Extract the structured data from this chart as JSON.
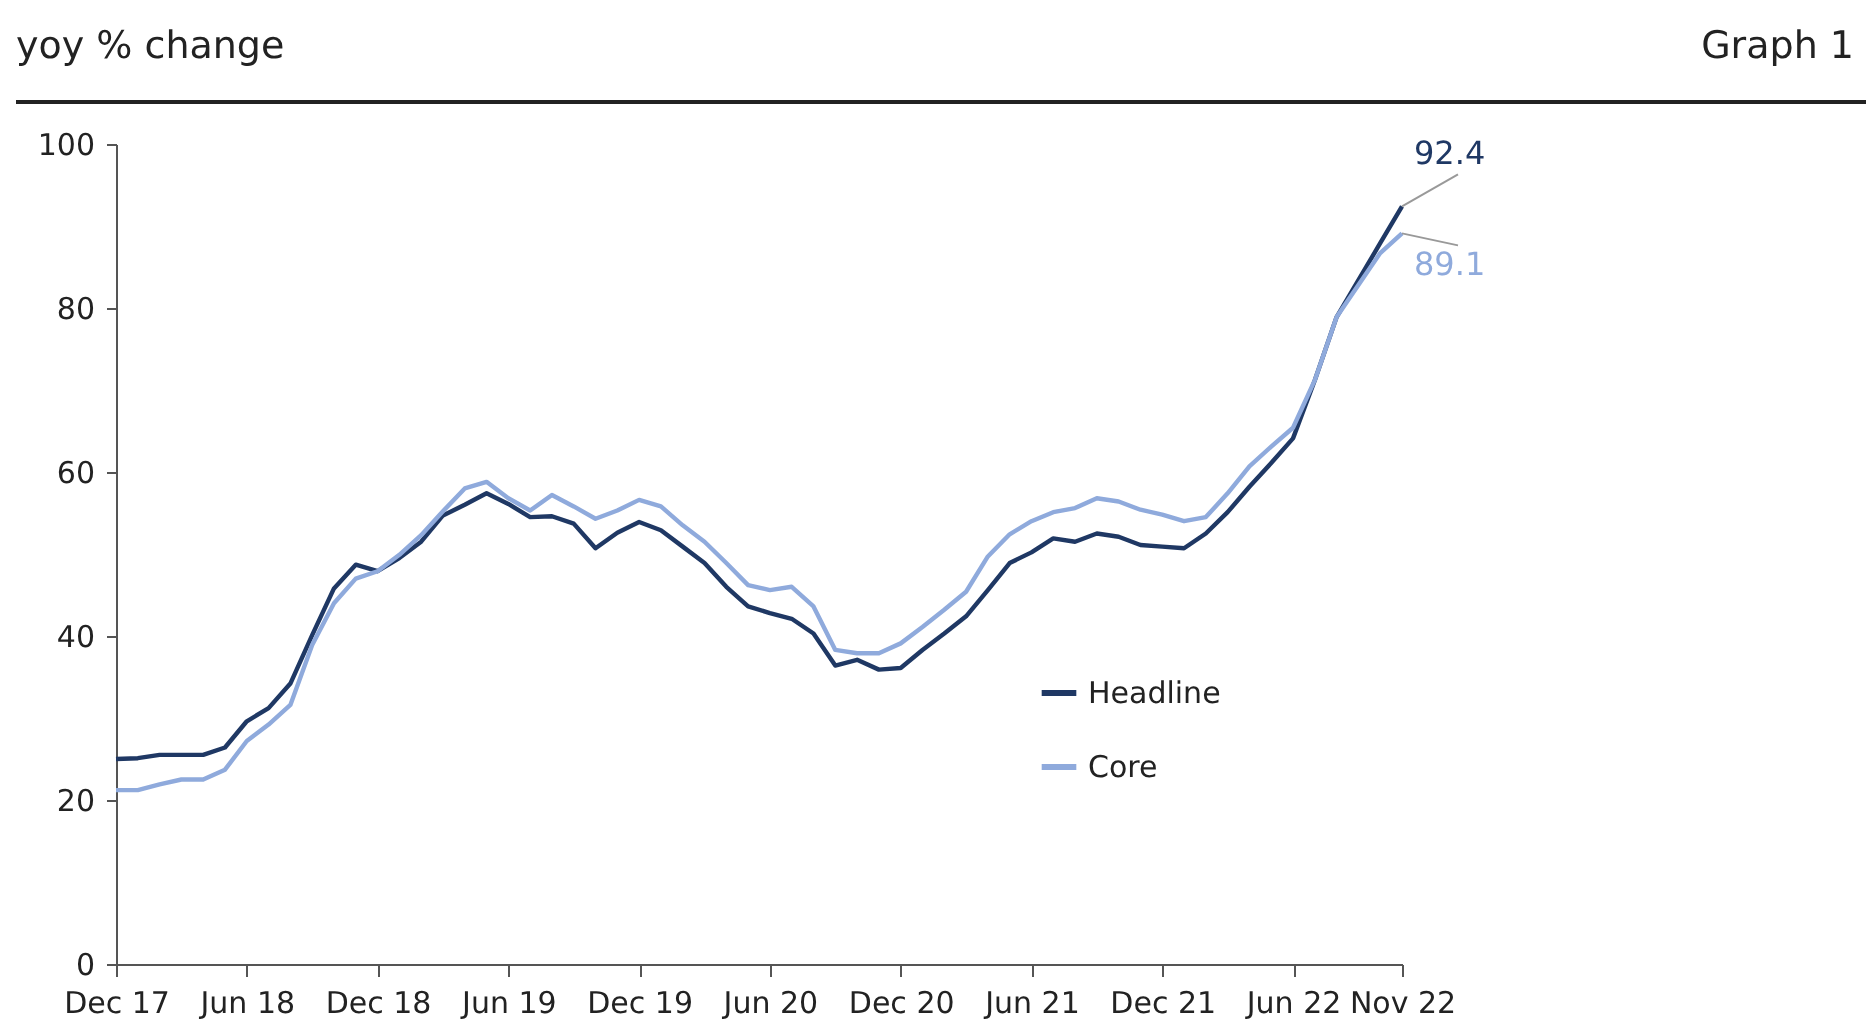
{
  "chart_data": {
    "type": "line",
    "title": "yoy % change",
    "annotations": [
      "Graph 1"
    ],
    "categories": [
      "Dec 17",
      null,
      null,
      null,
      null,
      null,
      "Jun 18",
      null,
      null,
      null,
      null,
      null,
      "Dec 18",
      null,
      null,
      null,
      null,
      null,
      "Jun 19",
      null,
      null,
      null,
      null,
      null,
      "Dec 19",
      null,
      null,
      null,
      null,
      null,
      "Jun 20",
      null,
      null,
      null,
      null,
      null,
      "Dec 20",
      null,
      null,
      null,
      null,
      null,
      "Jun 21",
      null,
      null,
      null,
      null,
      null,
      "Dec 21",
      null,
      null,
      null,
      null,
      null,
      "Jun 22",
      null,
      null,
      null,
      null,
      "Nov 22"
    ],
    "series": [
      {
        "name": "Headline",
        "color": "#1f3864",
        "values": [
          25.0,
          25.1,
          25.5,
          25.5,
          25.5,
          26.4,
          29.6,
          31.2,
          34.2,
          40.1,
          45.8,
          48.7,
          47.9,
          49.5,
          51.5,
          54.7,
          56.0,
          57.4,
          56.1,
          54.5,
          54.6,
          53.7,
          50.7,
          52.6,
          53.9,
          52.9,
          50.9,
          48.9,
          46.0,
          43.6,
          42.8,
          42.1,
          40.3,
          36.4,
          37.1,
          35.9,
          36.1,
          38.3,
          40.3,
          42.4,
          45.6,
          48.9,
          50.2,
          51.9,
          51.5,
          52.5,
          52.1,
          51.1,
          50.9,
          50.7,
          52.5,
          55.1,
          58.2,
          61.1,
          64.1,
          71.2,
          78.9,
          83.4,
          87.9,
          92.4
        ],
        "value_labels": [
          null,
          null,
          null,
          null,
          null,
          null,
          null,
          null,
          null,
          null,
          null,
          null,
          null,
          null,
          null,
          null,
          null,
          null,
          null,
          null,
          null,
          null,
          null,
          null,
          null,
          null,
          null,
          null,
          null,
          null,
          null,
          null,
          null,
          null,
          null,
          null,
          null,
          null,
          null,
          null,
          null,
          null,
          null,
          null,
          null,
          null,
          null,
          null,
          null,
          null,
          null,
          null,
          null,
          null,
          null,
          null,
          null,
          null,
          null,
          "92.4"
        ]
      },
      {
        "name": "Core",
        "color": "#8faadc",
        "values": [
          21.2,
          21.2,
          21.9,
          22.5,
          22.5,
          23.7,
          27.2,
          29.2,
          31.6,
          38.9,
          44.0,
          47.0,
          47.9,
          49.9,
          52.3,
          55.2,
          58.0,
          58.8,
          56.8,
          55.3,
          57.2,
          55.8,
          54.3,
          55.3,
          56.6,
          55.8,
          53.5,
          51.5,
          48.9,
          46.2,
          45.6,
          46.0,
          43.6,
          38.3,
          37.9,
          37.9,
          39.1,
          41.1,
          43.2,
          45.4,
          49.7,
          52.4,
          54.0,
          55.1,
          55.6,
          56.8,
          56.4,
          55.4,
          54.8,
          54.0,
          54.5,
          57.4,
          60.7,
          63.1,
          65.4,
          71.2,
          78.9,
          82.8,
          86.7,
          89.1
        ],
        "value_labels": [
          null,
          null,
          null,
          null,
          null,
          null,
          null,
          null,
          null,
          null,
          null,
          null,
          null,
          null,
          null,
          null,
          null,
          null,
          null,
          null,
          null,
          null,
          null,
          null,
          null,
          null,
          null,
          null,
          null,
          null,
          null,
          null,
          null,
          null,
          null,
          null,
          null,
          null,
          null,
          null,
          null,
          null,
          null,
          null,
          null,
          null,
          null,
          null,
          null,
          null,
          null,
          null,
          null,
          null,
          null,
          null,
          null,
          null,
          null,
          "89.1"
        ]
      }
    ],
    "ylim": [
      0,
      100
    ],
    "yticks": [
      0,
      20,
      40,
      60,
      80,
      100
    ],
    "legend": "bottom right",
    "grid": false,
    "marker": "none",
    "line_style": "solid"
  }
}
